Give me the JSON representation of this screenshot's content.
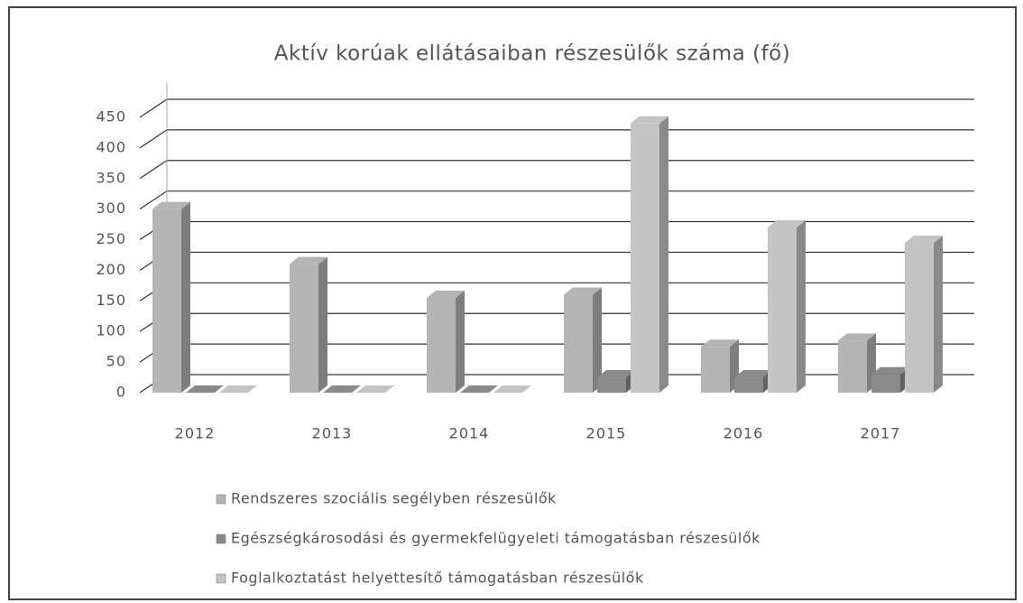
{
  "chart_data": {
    "type": "bar3d",
    "title": "Aktív korúak ellátásaiban részesülők száma (fő)",
    "categories": [
      "2012",
      "2013",
      "2014",
      "2015",
      "2016",
      "2017"
    ],
    "series": [
      {
        "name": "Rendszeres szociális segélyben részesülők",
        "color": "#b4b4b4",
        "values": [
          300,
          210,
          155,
          160,
          75,
          85
        ]
      },
      {
        "name": "Egészségkárosodási és gyermekfelügyeleti támogatásban részesülők",
        "color": "#8a8a8a",
        "values": [
          0,
          0,
          0,
          25,
          25,
          30
        ]
      },
      {
        "name": "Foglalkoztatást helyettesítő támogatásban részesülők",
        "color": "#c4c4c4",
        "values": [
          0,
          0,
          0,
          440,
          270,
          245
        ]
      }
    ],
    "ylim": [
      0,
      450
    ],
    "yticks": [
      0,
      50,
      100,
      150,
      200,
      250,
      300,
      350,
      400,
      450
    ],
    "grid": true,
    "legend": "bottom"
  }
}
